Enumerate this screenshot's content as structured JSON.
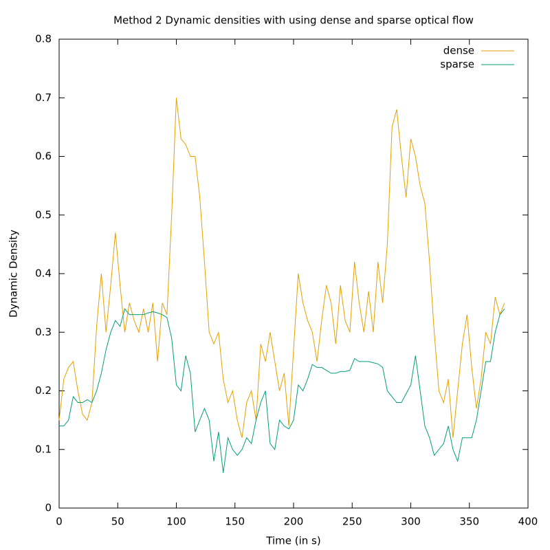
{
  "chart_data": {
    "type": "line",
    "title": "Method 2 Dynamic densities with using dense and sparse optical flow",
    "x_label": "Time (in s)",
    "y_label": "Dynamic Density",
    "x": [
      0,
      4,
      8,
      12,
      16,
      20,
      24,
      28,
      32,
      36,
      40,
      44,
      48,
      52,
      56,
      60,
      64,
      68,
      72,
      76,
      80,
      84,
      88,
      92,
      96,
      100,
      104,
      108,
      112,
      116,
      120,
      124,
      128,
      132,
      136,
      140,
      144,
      148,
      152,
      156,
      160,
      164,
      168,
      172,
      176,
      180,
      184,
      188,
      192,
      196,
      200,
      204,
      208,
      212,
      216,
      220,
      224,
      228,
      232,
      236,
      240,
      244,
      248,
      252,
      256,
      260,
      264,
      268,
      272,
      276,
      280,
      284,
      288,
      292,
      296,
      300,
      304,
      308,
      312,
      316,
      320,
      324,
      328,
      332,
      336,
      340,
      344,
      348,
      352,
      356,
      360,
      364,
      368,
      372,
      376,
      380
    ],
    "series": [
      {
        "name": "dense",
        "color": "#e69f00",
        "values": [
          0.15,
          0.22,
          0.24,
          0.25,
          0.2,
          0.16,
          0.15,
          0.18,
          0.31,
          0.4,
          0.3,
          0.38,
          0.47,
          0.38,
          0.3,
          0.35,
          0.32,
          0.3,
          0.34,
          0.3,
          0.35,
          0.25,
          0.35,
          0.33,
          0.5,
          0.7,
          0.63,
          0.62,
          0.6,
          0.6,
          0.53,
          0.42,
          0.3,
          0.28,
          0.3,
          0.22,
          0.18,
          0.2,
          0.15,
          0.12,
          0.18,
          0.2,
          0.15,
          0.28,
          0.25,
          0.3,
          0.25,
          0.2,
          0.23,
          0.14,
          0.27,
          0.4,
          0.35,
          0.32,
          0.3,
          0.25,
          0.32,
          0.38,
          0.35,
          0.28,
          0.38,
          0.32,
          0.3,
          0.42,
          0.35,
          0.3,
          0.37,
          0.3,
          0.42,
          0.35,
          0.45,
          0.65,
          0.68,
          0.6,
          0.53,
          0.63,
          0.6,
          0.55,
          0.52,
          0.42,
          0.3,
          0.2,
          0.18,
          0.22,
          0.12,
          0.2,
          0.28,
          0.33,
          0.24,
          0.17,
          0.22,
          0.3,
          0.28,
          0.36,
          0.33,
          0.35
        ]
      },
      {
        "name": "sparse",
        "color": "#009e73",
        "values": [
          0.14,
          0.14,
          0.15,
          0.19,
          0.18,
          0.18,
          0.185,
          0.18,
          0.2,
          0.23,
          0.27,
          0.3,
          0.32,
          0.31,
          0.34,
          0.33,
          0.33,
          0.33,
          0.33,
          0.333,
          0.335,
          0.333,
          0.33,
          0.325,
          0.29,
          0.21,
          0.2,
          0.26,
          0.23,
          0.13,
          0.15,
          0.17,
          0.15,
          0.08,
          0.13,
          0.06,
          0.12,
          0.1,
          0.09,
          0.1,
          0.12,
          0.11,
          0.15,
          0.18,
          0.2,
          0.11,
          0.1,
          0.15,
          0.14,
          0.135,
          0.15,
          0.21,
          0.2,
          0.22,
          0.245,
          0.24,
          0.24,
          0.235,
          0.23,
          0.23,
          0.233,
          0.233,
          0.235,
          0.255,
          0.25,
          0.25,
          0.25,
          0.248,
          0.246,
          0.24,
          0.2,
          0.19,
          0.18,
          0.18,
          0.195,
          0.21,
          0.26,
          0.2,
          0.14,
          0.12,
          0.09,
          0.1,
          0.11,
          0.14,
          0.1,
          0.08,
          0.12,
          0.12,
          0.12,
          0.15,
          0.2,
          0.25,
          0.25,
          0.3,
          0.33,
          0.34
        ]
      }
    ],
    "xlim": [
      0,
      400
    ],
    "xticks": [
      0,
      50,
      100,
      150,
      200,
      250,
      300,
      350,
      400
    ],
    "ylim": [
      0,
      0.8
    ],
    "yticks": [
      0,
      0.1,
      0.2,
      0.3,
      0.4,
      0.5,
      0.6,
      0.7,
      0.8
    ],
    "grid": false,
    "legend": "top-right"
  }
}
